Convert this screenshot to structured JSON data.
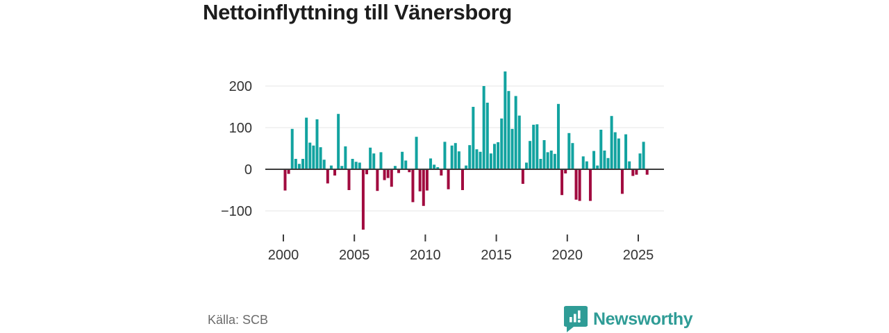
{
  "page": {
    "title": "Nettoinflyttning till Vänersborg",
    "source": "Källa: SCB",
    "brand": "Newsworthy"
  },
  "colors": {
    "positive_bar": "#12a3a0",
    "negative_bar": "#a10b3f",
    "brand_teal": "#2f9c96",
    "axis_line": "#3c3c3c",
    "grid_line": "#e4e4e4",
    "tick_text": "#333333",
    "title_text": "#1d1d1d",
    "source_text": "#6b6b6b"
  },
  "chart_data": {
    "type": "bar",
    "title": "Nettoinflyttning till Vänersborg",
    "frequency": "quarterly",
    "start_year": 2000,
    "start_quarter": 1,
    "end_year": 2025,
    "end_quarter": 3,
    "xlabel": "",
    "ylabel": "",
    "ylim": [
      -160,
      250
    ],
    "grid": "horizontal",
    "legend": "none",
    "y_ticks": [
      200,
      100,
      0,
      -100
    ],
    "y_tick_labels": [
      "200",
      "100",
      "0",
      "−100"
    ],
    "x_ticks": [
      2000,
      2005,
      2010,
      2015,
      2020,
      2025
    ],
    "values": [
      -51,
      -11,
      97,
      25,
      13,
      25,
      124,
      64,
      57,
      120,
      53,
      23,
      -34,
      9,
      -15,
      133,
      8,
      55,
      -50,
      25,
      18,
      16,
      -145,
      -12,
      52,
      38,
      -52,
      41,
      -26,
      -21,
      -42,
      8,
      -9,
      42,
      21,
      -7,
      -79,
      78,
      -53,
      -88,
      -51,
      26,
      11,
      5,
      -15,
      66,
      -48,
      57,
      63,
      43,
      -50,
      9,
      58,
      150,
      48,
      42,
      200,
      160,
      38,
      61,
      65,
      122,
      235,
      188,
      97,
      176,
      129,
      -35,
      16,
      68,
      107,
      108,
      25,
      70,
      41,
      45,
      37,
      157,
      -62,
      -10,
      87,
      63,
      -73,
      -76,
      31,
      19,
      -76,
      44,
      9,
      95,
      45,
      27,
      128,
      89,
      74,
      -59,
      84,
      19,
      -16,
      -13,
      38,
      66,
      -13
    ]
  }
}
